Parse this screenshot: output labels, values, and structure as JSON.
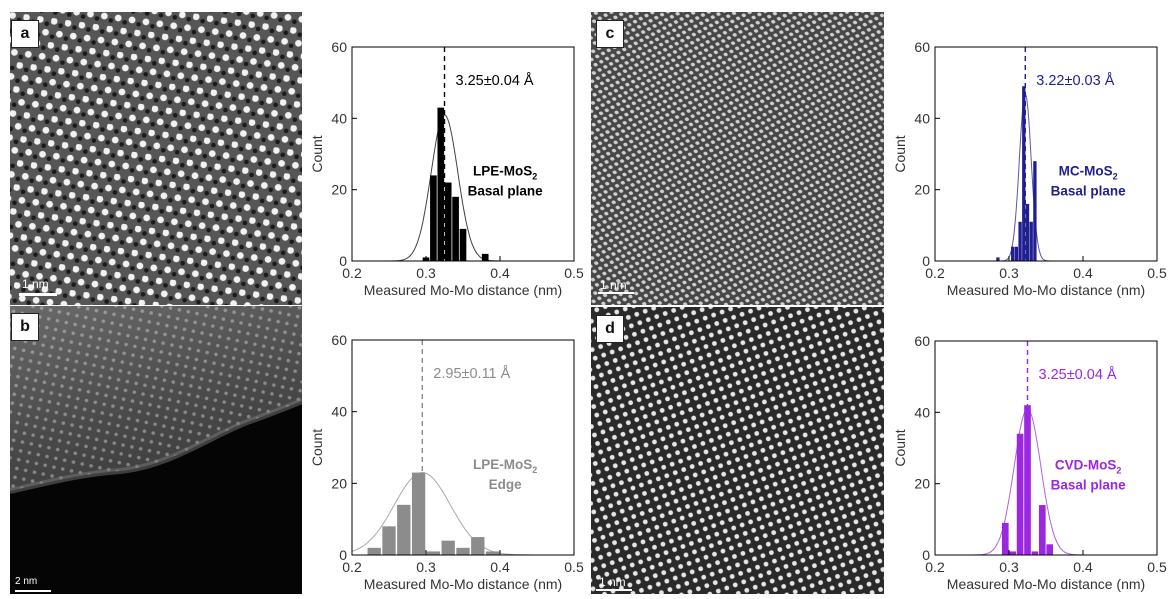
{
  "panels": [
    {
      "letter": "a",
      "scalebar": "1 nm"
    },
    {
      "letter": "b",
      "scalebar": "2 nm"
    },
    {
      "letter": "c",
      "scalebar": "1 nm"
    },
    {
      "letter": "d",
      "scalebar": "1 nm"
    }
  ],
  "chart_data": [
    {
      "type": "bar",
      "panel": "a",
      "xlabel": "Measured Mo-Mo distance (nm)",
      "ylabel": "Count",
      "xlim": [
        0.2,
        0.5
      ],
      "ylim": [
        0,
        60
      ],
      "xticks": [
        "0.2",
        "0.3",
        "0.4",
        "0.5"
      ],
      "yticks": [
        "0",
        "20",
        "40",
        "60"
      ],
      "bin_width": 0.01,
      "x": [
        0.3,
        0.31,
        0.32,
        0.33,
        0.34,
        0.35,
        0.38
      ],
      "values": [
        1,
        24,
        43,
        22,
        18,
        9,
        2
      ],
      "mean_label": "3.25±0.04 Å",
      "mean": 0.325,
      "sd": 0.018,
      "fit_peak": 41,
      "sample_label": [
        "LPE-MoS",
        "2",
        "Basal plane"
      ],
      "color": "#000000"
    },
    {
      "type": "bar",
      "panel": "b",
      "xlabel": "Measured Mo-Mo distance (nm)",
      "ylabel": "Count",
      "xlim": [
        0.2,
        0.5
      ],
      "ylim": [
        0,
        60
      ],
      "xticks": [
        "0.2",
        "0.3",
        "0.4",
        "0.5"
      ],
      "yticks": [
        "0",
        "20",
        "40",
        "60"
      ],
      "bin_width": 0.02,
      "x": [
        0.23,
        0.25,
        0.27,
        0.29,
        0.31,
        0.33,
        0.35,
        0.37,
        0.39
      ],
      "values": [
        2,
        8,
        14,
        23,
        1,
        4,
        2,
        5,
        1
      ],
      "mean_label": "2.95±0.11 Å",
      "mean": 0.295,
      "sd": 0.038,
      "fit_peak": 23,
      "sample_label": [
        "LPE-MoS",
        "2",
        "Edge"
      ],
      "color": "#8c8c8c"
    },
    {
      "type": "bar",
      "panel": "c",
      "xlabel": "Measured Mo-Mo distance (nm)",
      "ylabel": "Count",
      "xlim": [
        0.2,
        0.5
      ],
      "ylim": [
        0,
        60
      ],
      "xticks": [
        "0.2",
        "0.3",
        "0.4",
        "0.5"
      ],
      "yticks": [
        "0",
        "20",
        "40",
        "60"
      ],
      "bin_width": 0.005,
      "x": [
        0.285,
        0.305,
        0.31,
        0.315,
        0.32,
        0.325,
        0.33,
        0.335
      ],
      "values": [
        1,
        4,
        4,
        11,
        49,
        16,
        11,
        28
      ],
      "mean_label": "3.22±0.03 Å",
      "mean": 0.322,
      "sd": 0.008,
      "fit_peak": 47,
      "sample_label": [
        "MC-MoS",
        "2",
        "Basal plane"
      ],
      "color": "#1f1f8f"
    },
    {
      "type": "bar",
      "panel": "d",
      "xlabel": "Measured Mo-Mo distance (nm)",
      "ylabel": "Count",
      "xlim": [
        0.2,
        0.5
      ],
      "ylim": [
        0,
        60
      ],
      "xticks": [
        "0.2",
        "0.3",
        "0.4",
        "0.5"
      ],
      "yticks": [
        "0",
        "20",
        "40",
        "60"
      ],
      "bin_width": 0.01,
      "x": [
        0.295,
        0.305,
        0.315,
        0.325,
        0.335,
        0.345,
        0.355
      ],
      "values": [
        9,
        1,
        34,
        42,
        1,
        14,
        3
      ],
      "mean_label": "3.25±0.04 Å",
      "mean": 0.325,
      "sd": 0.018,
      "fit_peak": 41,
      "sample_label": [
        "CVD-MoS",
        "2",
        "Basal plane"
      ],
      "color": "#9b27e0"
    }
  ]
}
